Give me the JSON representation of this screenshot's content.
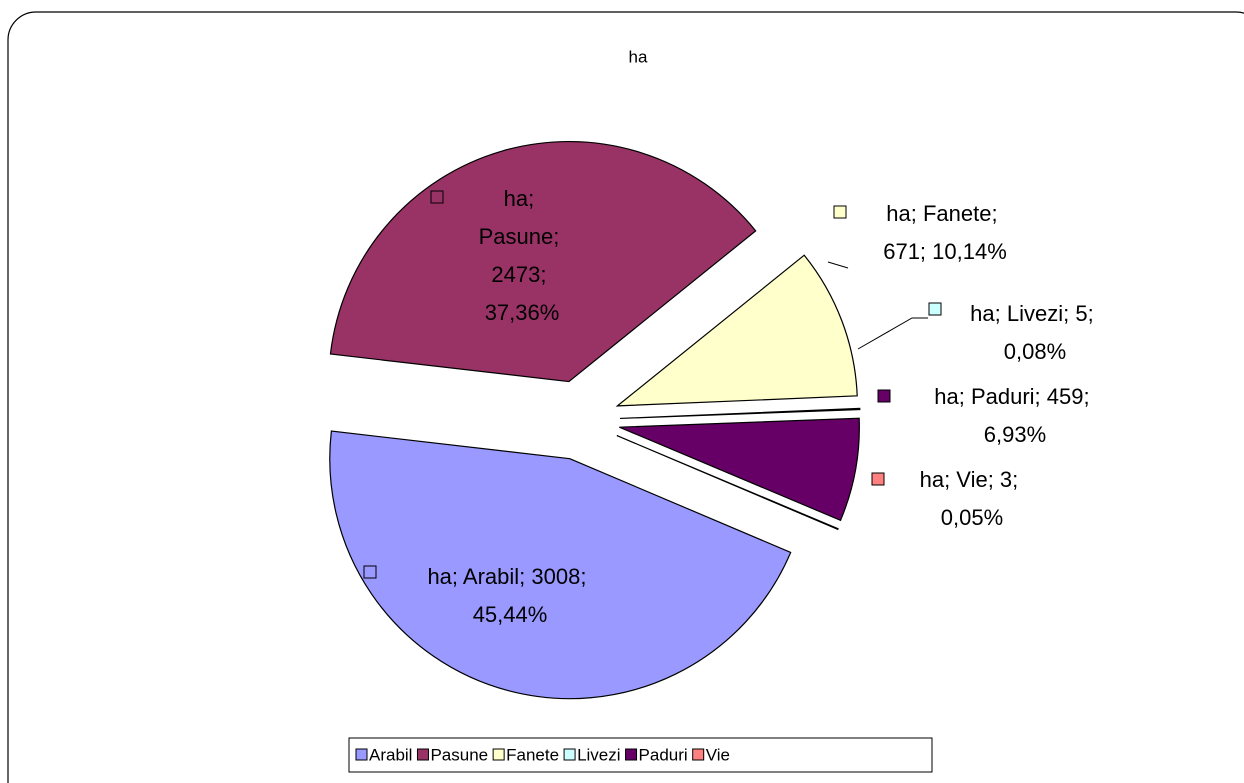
{
  "chart_data": {
    "type": "pie",
    "title": "ha",
    "categories": [
      "Arabil",
      "Pasune",
      "Fanete",
      "Livezi",
      "Paduri",
      "Vie"
    ],
    "values": [
      3008,
      2473,
      671,
      5,
      459,
      3
    ],
    "value_labels": [
      "ha; Arabil; 3008; 45,44%",
      "ha; Pasune; 2473; 37,36%",
      "ha; Fanete; 671; 10,14%",
      "ha; Livezi; 5; 0,08%",
      "ha; Paduri; 459; 6,93%",
      "ha; Vie; 3; 0,05%"
    ],
    "colors": [
      "#9999ff",
      "#993366",
      "#ffffcc",
      "#ccffff",
      "#660066",
      "#ff8080"
    ],
    "legend": "bottom"
  }
}
